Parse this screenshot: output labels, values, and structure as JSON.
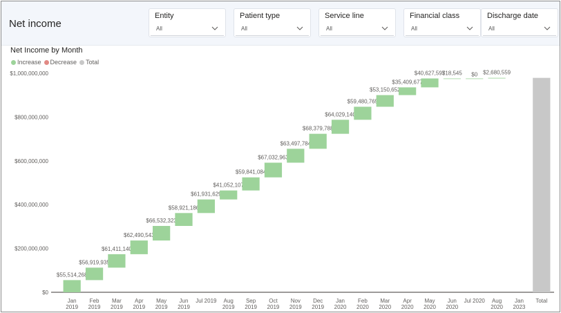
{
  "page": {
    "title": "Net income"
  },
  "filters": [
    {
      "label": "Entity",
      "value": "All"
    },
    {
      "label": "Patient type",
      "value": "All"
    },
    {
      "label": "Service line",
      "value": "All"
    },
    {
      "label": "Financial class",
      "value": "All"
    },
    {
      "label": "Discharge date",
      "value": "All"
    }
  ],
  "colors": {
    "increase": "#9dd39a",
    "decrease": "#e28a85",
    "total": "#c8c8c8"
  },
  "chart_data": {
    "type": "bar",
    "subtype": "waterfall",
    "title": "Net Income by Month",
    "legend": [
      "Increase",
      "Decrease",
      "Total"
    ],
    "legend_position": "top-left",
    "categories": [
      [
        "Jan",
        "2019"
      ],
      [
        "Feb",
        "2019"
      ],
      [
        "Mar",
        "2019"
      ],
      [
        "Apr",
        "2019"
      ],
      [
        "May",
        "2019"
      ],
      [
        "Jun",
        "2019"
      ],
      [
        "Jul 2019",
        ""
      ],
      [
        "Aug",
        "2019"
      ],
      [
        "Sep",
        "2019"
      ],
      [
        "Oct",
        "2019"
      ],
      [
        "Nov",
        "2019"
      ],
      [
        "Dec",
        "2019"
      ],
      [
        "Jan",
        "2020"
      ],
      [
        "Feb",
        "2020"
      ],
      [
        "Mar",
        "2020"
      ],
      [
        "Apr",
        "2020"
      ],
      [
        "May",
        "2020"
      ],
      [
        "Jun",
        "2020"
      ],
      [
        "Jul 2020",
        ""
      ],
      [
        "Aug",
        "2020"
      ],
      [
        "Jan",
        "2023"
      ],
      [
        "Total",
        ""
      ]
    ],
    "values": [
      55514268,
      56919935,
      61411140,
      62490543,
      66532323,
      58921186,
      61931629,
      41052107,
      59841084,
      67032963,
      63497784,
      68379788,
      64029140,
      59480765,
      53150652,
      35409677,
      40627597,
      18545,
      0,
      2680559,
      null,
      null
    ],
    "labels": [
      "$55,514,268",
      "$56,919,935",
      "$61,411,140",
      "$62,490,543",
      "$66,532,323",
      "$58,921,186",
      "$61,931,629",
      "$41,052,107",
      "$59,841,084",
      "$67,032,963",
      "$63,497,784",
      "$68,379,788",
      "$64,029,140",
      "$59,480,765",
      "$53,150,652",
      "$35,409,677",
      "$40,627,597",
      "$18,545",
      "$0",
      "$2,680,559",
      "",
      ""
    ],
    "ylim": [
      0,
      1000000000
    ],
    "yticks": [
      0,
      200000000,
      400000000,
      600000000,
      800000000,
      1000000000
    ],
    "ytick_labels": [
      "$0",
      "$200,000,000",
      "$400,000,000",
      "$600,000,000",
      "$800,000,000",
      "$1,000,000,000"
    ],
    "grid": false
  }
}
